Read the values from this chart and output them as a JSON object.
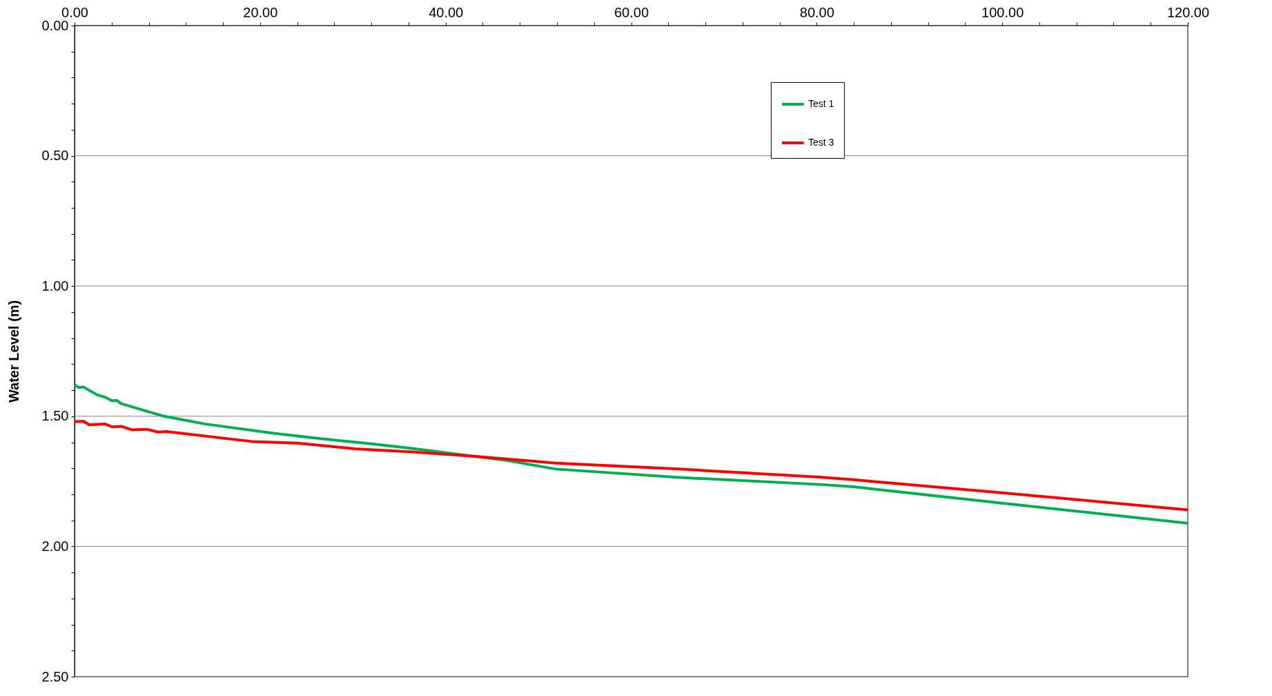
{
  "chart_data": {
    "type": "line",
    "ylabel": "Water Level (m)",
    "series": [
      {
        "name": "Test 1",
        "color": "#00b050",
        "x": [
          0,
          0.46,
          0.96,
          2.44,
          3.3,
          4.05,
          4.55,
          5.04,
          9.64,
          14.1,
          21.6,
          26.5,
          32,
          36.4,
          46.8,
          51.9,
          65.2,
          80.3,
          84,
          90,
          100,
          120
        ],
        "values": [
          1.379,
          1.39,
          1.388,
          1.418,
          1.427,
          1.441,
          1.439,
          1.452,
          1.5,
          1.53,
          1.566,
          1.586,
          1.606,
          1.624,
          1.671,
          1.703,
          1.735,
          1.762,
          1.771,
          1.795,
          1.834,
          1.911
        ]
      },
      {
        "name": "Test 3",
        "color": "#ff0000",
        "x": [
          0,
          0.96,
          1.58,
          3.3,
          4.05,
          5.04,
          6.16,
          7.77,
          9,
          9.9,
          19.1,
          24,
          30.2,
          36.4,
          43.25,
          51.9,
          65.2,
          80.3,
          84,
          100,
          120
        ],
        "values": [
          1.521,
          1.519,
          1.533,
          1.53,
          1.541,
          1.539,
          1.552,
          1.55,
          1.561,
          1.559,
          1.597,
          1.603,
          1.625,
          1.637,
          1.654,
          1.68,
          1.703,
          1.734,
          1.744,
          1.794,
          1.86
        ]
      }
    ],
    "xlim": [
      0,
      120
    ],
    "xticks": [
      {
        "value": 0,
        "label": "0.00"
      },
      {
        "value": 4,
        "label": null
      },
      {
        "value": 8,
        "label": null
      },
      {
        "value": 12,
        "label": null
      },
      {
        "value": 16,
        "label": null
      },
      {
        "value": 20,
        "label": "20.00"
      },
      {
        "value": 24,
        "label": null
      },
      {
        "value": 28,
        "label": null
      },
      {
        "value": 32,
        "label": null
      },
      {
        "value": 36,
        "label": null
      },
      {
        "value": 40,
        "label": "40.00"
      },
      {
        "value": 44,
        "label": null
      },
      {
        "value": 48,
        "label": null
      },
      {
        "value": 52,
        "label": null
      },
      {
        "value": 56,
        "label": null
      },
      {
        "value": 60,
        "label": "60.00"
      },
      {
        "value": 64,
        "label": null
      },
      {
        "value": 68,
        "label": null
      },
      {
        "value": 72,
        "label": null
      },
      {
        "value": 76,
        "label": null
      },
      {
        "value": 80,
        "label": "80.00"
      },
      {
        "value": 84,
        "label": null
      },
      {
        "value": 88,
        "label": null
      },
      {
        "value": 92,
        "label": null
      },
      {
        "value": 96,
        "label": null
      },
      {
        "value": 100,
        "label": "100.00"
      },
      {
        "value": 104,
        "label": null
      },
      {
        "value": 108,
        "label": null
      },
      {
        "value": 112,
        "label": null
      },
      {
        "value": 116,
        "label": null
      },
      {
        "value": 120,
        "label": "120.00"
      }
    ],
    "ylim": [
      2.5,
      0
    ],
    "yticks": [
      {
        "value": 0,
        "label": "0.00"
      },
      {
        "value": 0.1,
        "label": null
      },
      {
        "value": 0.2,
        "label": null
      },
      {
        "value": 0.3,
        "label": null
      },
      {
        "value": 0.4,
        "label": null
      },
      {
        "value": 0.5,
        "label": "0.50"
      },
      {
        "value": 0.6,
        "label": null
      },
      {
        "value": 0.7,
        "label": null
      },
      {
        "value": 0.8,
        "label": null
      },
      {
        "value": 0.9,
        "label": null
      },
      {
        "value": 1,
        "label": "1.00"
      },
      {
        "value": 1.1,
        "label": null
      },
      {
        "value": 1.2,
        "label": null
      },
      {
        "value": 1.3,
        "label": null
      },
      {
        "value": 1.4,
        "label": null
      },
      {
        "value": 1.5,
        "label": "1.50"
      },
      {
        "value": 1.6,
        "label": null
      },
      {
        "value": 1.7,
        "label": null
      },
      {
        "value": 1.8,
        "label": null
      },
      {
        "value": 1.9,
        "label": null
      },
      {
        "value": 2,
        "label": "2.00"
      },
      {
        "value": 2.1,
        "label": null
      },
      {
        "value": 2.2,
        "label": null
      },
      {
        "value": 2.3,
        "label": null
      },
      {
        "value": 2.4,
        "label": null
      },
      {
        "value": 2.5,
        "label": "2.50"
      }
    ],
    "grid": "y",
    "legend": "top right",
    "line_style": "solid"
  }
}
